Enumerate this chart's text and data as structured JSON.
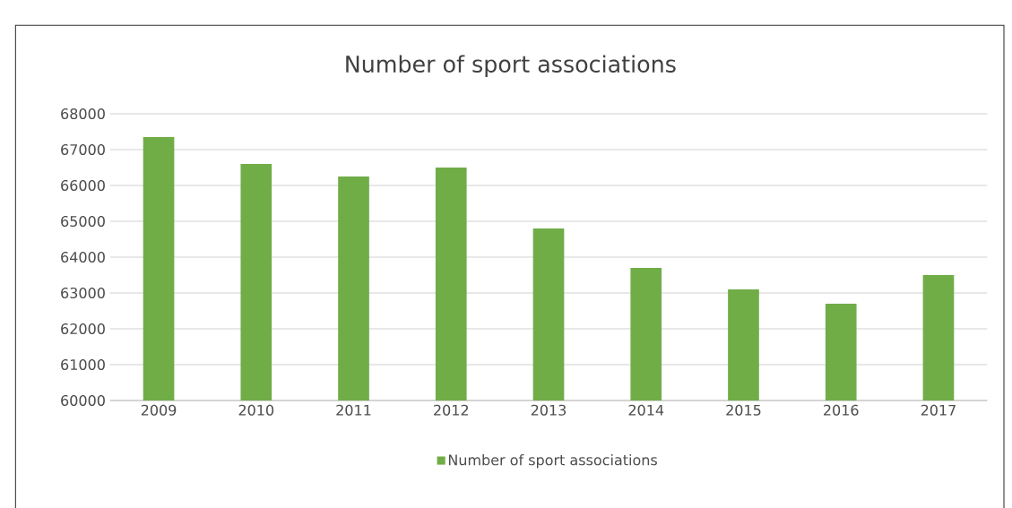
{
  "chart_data": {
    "type": "bar",
    "title": "Number of sport associations",
    "categories": [
      "2009",
      "2010",
      "2011",
      "2012",
      "2013",
      "2014",
      "2015",
      "2016",
      "2017"
    ],
    "series": [
      {
        "name": "Number of sport associations",
        "color": "#70ad47",
        "values": [
          67350,
          66600,
          66250,
          66500,
          64800,
          63700,
          63100,
          62700,
          63500
        ]
      }
    ],
    "ylim": [
      60000,
      68000
    ],
    "yticks": [
      60000,
      61000,
      62000,
      63000,
      64000,
      65000,
      66000,
      67000,
      68000
    ],
    "grid": "y",
    "legend": "bottom"
  }
}
